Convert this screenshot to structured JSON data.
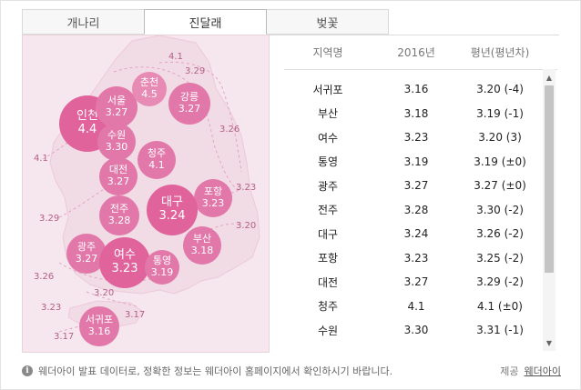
{
  "tabs": [
    "개나리",
    "진달래",
    "벚꽃"
  ],
  "active_tab": 1,
  "colors": {
    "map_bg": "#f6e7ee",
    "bubble": "#e0639b",
    "bubble_light": "#e88bb4",
    "land": "#f1dbe5",
    "line": "#e5a3c2"
  },
  "map": {
    "bubbles": [
      {
        "city": "인천",
        "value": "4.4"
      },
      {
        "city": "서울",
        "value": "3.27"
      },
      {
        "city": "춘천",
        "value": "4.5"
      },
      {
        "city": "강릉",
        "value": "3.27"
      },
      {
        "city": "수원",
        "value": "3.30"
      },
      {
        "city": "청주",
        "value": "4.1"
      },
      {
        "city": "대전",
        "value": "3.27"
      },
      {
        "city": "포항",
        "value": "3.23"
      },
      {
        "city": "대구",
        "value": "3.24"
      },
      {
        "city": "전주",
        "value": "3.28"
      },
      {
        "city": "부산",
        "value": "3.18"
      },
      {
        "city": "광주",
        "value": "3.27"
      },
      {
        "city": "여수",
        "value": "3.23"
      },
      {
        "city": "통영",
        "value": "3.19"
      },
      {
        "city": "서귀포",
        "value": "3.16"
      }
    ],
    "contour_labels": [
      "4.1",
      "3.29",
      "4.1",
      "3.26",
      "3.23",
      "3.29",
      "3.20",
      "3.26",
      "3.23",
      "3.20",
      "3.17",
      "3.17"
    ]
  },
  "table": {
    "headers": [
      "지역명",
      "2016년",
      "평년(평년차)"
    ],
    "rows": [
      [
        "서귀포",
        "3.16",
        "3.20 (-4)"
      ],
      [
        "부산",
        "3.18",
        "3.19 (-1)"
      ],
      [
        "여수",
        "3.23",
        "3.20 (3)"
      ],
      [
        "통영",
        "3.19",
        "3.19 (±0)"
      ],
      [
        "광주",
        "3.27",
        "3.27 (±0)"
      ],
      [
        "전주",
        "3.28",
        "3.30 (-2)"
      ],
      [
        "대구",
        "3.24",
        "3.26 (-2)"
      ],
      [
        "포항",
        "3.23",
        "3.25 (-2)"
      ],
      [
        "대전",
        "3.27",
        "3.29 (-2)"
      ],
      [
        "청주",
        "4.1",
        "4.1 (±0)"
      ],
      [
        "수원",
        "3.30",
        "3.31 (-1)"
      ]
    ]
  },
  "footer": {
    "info_icon": "info-icon",
    "notice": "웨더아이 발표 데이터로, 정확한 정보는 웨더아이 홈페이지에서 확인하시기 바랍니다.",
    "provider_label": "제공",
    "provider_name": "웨더아이"
  }
}
